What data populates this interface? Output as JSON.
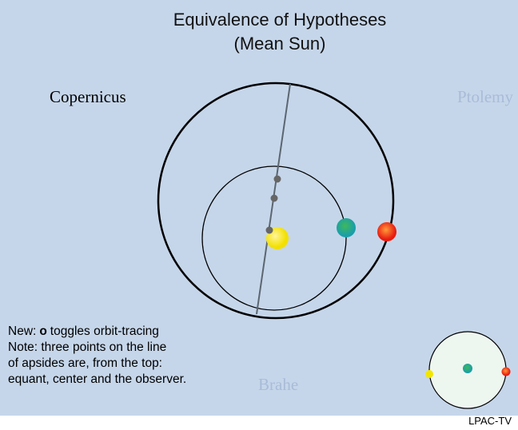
{
  "header": {
    "title": "Equivalence of Hypotheses",
    "subtitle": "(Mean Sun)"
  },
  "labels": {
    "copernicus": "Copernicus",
    "ptolemy": "Ptolemy",
    "brahe": "Brahe"
  },
  "notes": {
    "toggle": {
      "prefix": "New:",
      "key": "o",
      "suffix": "toggles orbit-tracing"
    },
    "lines": [
      "Note: three points on the line",
      "of apsides are, from the top:",
      "equant, center and the observer."
    ]
  },
  "footer": "LPAC-TV"
}
